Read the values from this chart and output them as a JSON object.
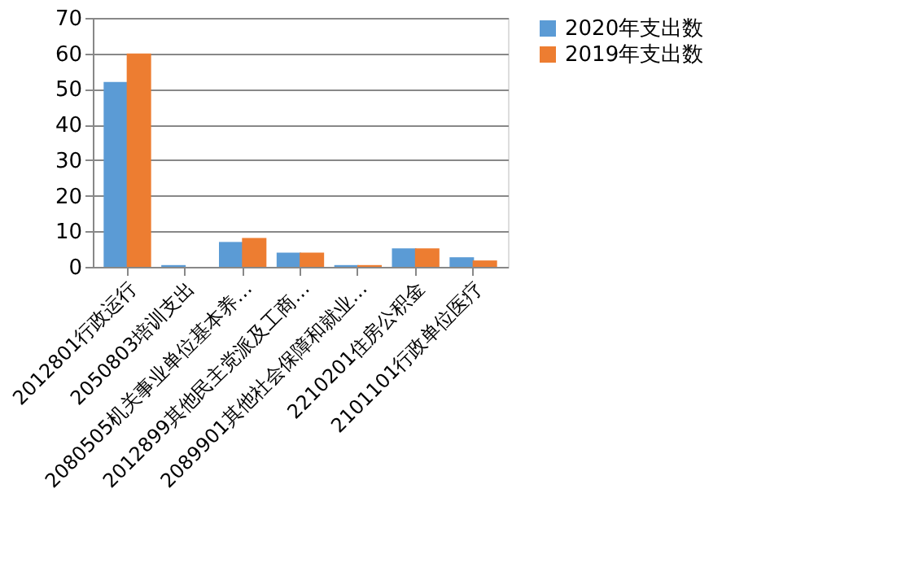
{
  "chart_data": {
    "type": "bar",
    "categories": [
      "2012801行政运行",
      "2050803培训支出",
      "2080505机关事业单位基本养…",
      "2012899其他民主党派及工商…",
      "2089901其他社会保障和就业…",
      "2210201住房公积金",
      "2101101行政单位医疗"
    ],
    "series": [
      {
        "name": "2020年支出数",
        "color": "#5b9bd5",
        "values": [
          52,
          0.5,
          7,
          4,
          0.5,
          5.2,
          2.7
        ]
      },
      {
        "name": "2019年支出数",
        "color": "#ed7d31",
        "values": [
          60,
          0,
          8.1,
          4,
          0.5,
          5.2,
          1.8
        ]
      }
    ],
    "ylim": [
      0,
      70
    ],
    "yticks": [
      0,
      10,
      20,
      30,
      40,
      50,
      60,
      70
    ],
    "grid": "y",
    "legend": "right"
  }
}
